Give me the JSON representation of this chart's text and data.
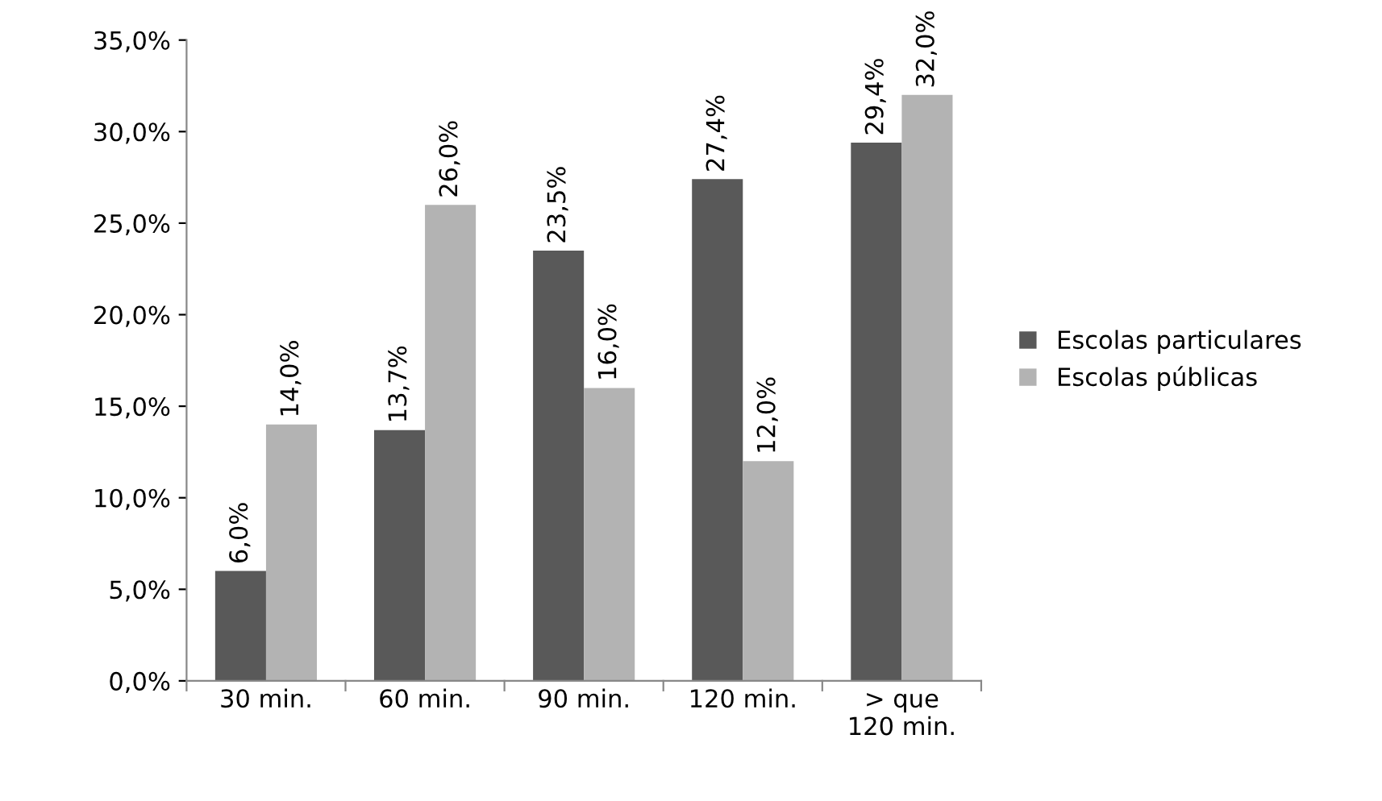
{
  "chart_data": {
    "type": "bar",
    "categories": [
      "30 min.",
      "60 min.",
      "90 min.",
      "120 min.",
      "> que\n120 min."
    ],
    "series": [
      {
        "name": "Escolas particulares",
        "color": "#595959",
        "values": [
          6.0,
          13.7,
          23.5,
          27.4,
          29.4
        ],
        "value_labels": [
          "6,0%",
          "13,7%",
          "23,5%",
          "27,4%",
          "29,4%"
        ]
      },
      {
        "name": "Escolas públicas",
        "color": "#b3b3b3",
        "values": [
          14.0,
          26.0,
          16.0,
          12.0,
          32.0
        ],
        "value_labels": [
          "14,0%",
          "26,0%",
          "16,0%",
          "12,0%",
          "32,0%"
        ]
      }
    ],
    "ylim": [
      0,
      35
    ],
    "yticks": [
      {
        "value": 0,
        "label": "0,0%"
      },
      {
        "value": 5,
        "label": "5,0%"
      },
      {
        "value": 10,
        "label": "10,0%"
      },
      {
        "value": 15,
        "label": "15,0%"
      },
      {
        "value": 20,
        "label": "20,0%"
      },
      {
        "value": 25,
        "label": "25,0%"
      },
      {
        "value": 30,
        "label": "30,0%"
      },
      {
        "value": 35,
        "label": "35,0%"
      }
    ],
    "grid": false,
    "legend": "right"
  }
}
